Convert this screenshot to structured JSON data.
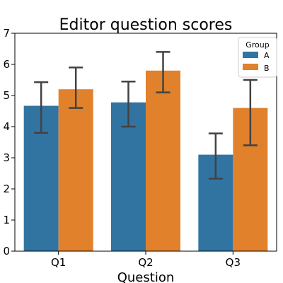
{
  "chart_data": {
    "type": "bar",
    "title": "Editor question scores",
    "xlabel": "Question",
    "ylabel": "",
    "categories": [
      "Q1",
      "Q2",
      "Q3"
    ],
    "ylim": [
      0,
      7
    ],
    "yticks": [
      0,
      1,
      2,
      3,
      4,
      5,
      6,
      7
    ],
    "grid": false,
    "legend": {
      "title": "Group",
      "placement": "top-right"
    },
    "series": [
      {
        "name": "A",
        "color": "#3274a1",
        "values": [
          4.67,
          4.78,
          3.1
        ],
        "err_low": [
          3.8,
          4.0,
          2.33
        ],
        "err_high": [
          5.43,
          5.45,
          3.78
        ]
      },
      {
        "name": "B",
        "color": "#e1812c",
        "values": [
          5.2,
          5.8,
          4.6
        ],
        "err_low": [
          4.6,
          5.1,
          3.4
        ],
        "err_high": [
          5.9,
          6.4,
          5.5
        ]
      }
    ]
  }
}
